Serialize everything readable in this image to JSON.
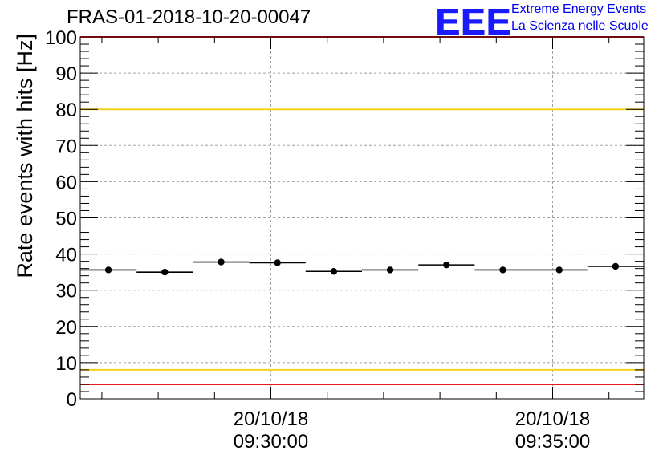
{
  "header": {
    "title": "FRAS-01-2018-10-20-00047",
    "logo": "EEE",
    "logo_line1": "Extreme Energy Events",
    "logo_line2": "La Scienza nelle Scuole"
  },
  "colors": {
    "threshold_red": "#e8191c",
    "threshold_yellow": "#f2d21b",
    "grid": "#a0a0a0",
    "points": "#000000"
  },
  "chart_data": {
    "type": "scatter",
    "title": "FRAS-01-2018-10-20-00047",
    "xlabel": "",
    "ylabel": "Rate events with hits [Hz]",
    "ylim": [
      0,
      100
    ],
    "y_ticks": [
      0,
      10,
      20,
      30,
      40,
      50,
      60,
      70,
      80,
      90,
      100
    ],
    "x_time_range": [
      "20/10/18 09:26:37",
      "20/10/18 09:36:37"
    ],
    "x_tick_labels": [
      {
        "date": "20/10/18",
        "time": "09:30:00"
      },
      {
        "date": "20/10/18",
        "time": "09:35:00"
      }
    ],
    "grid": true,
    "series": [
      {
        "x": [
          "09:27:07",
          "09:28:07",
          "09:29:07",
          "09:30:07",
          "09:31:07",
          "09:32:07",
          "09:33:07",
          "09:34:07",
          "09:35:07",
          "09:36:07"
        ],
        "bin_width_seconds": 60,
        "values": [
          35.6,
          35.0,
          37.8,
          37.6,
          35.2,
          35.6,
          37.0,
          35.6,
          35.6,
          36.6
        ]
      }
    ],
    "reference_lines": [
      {
        "y": 100,
        "color": "red"
      },
      {
        "y": 80,
        "color": "yellow"
      },
      {
        "y": 8,
        "color": "yellow"
      },
      {
        "y": 4,
        "color": "red"
      }
    ]
  }
}
